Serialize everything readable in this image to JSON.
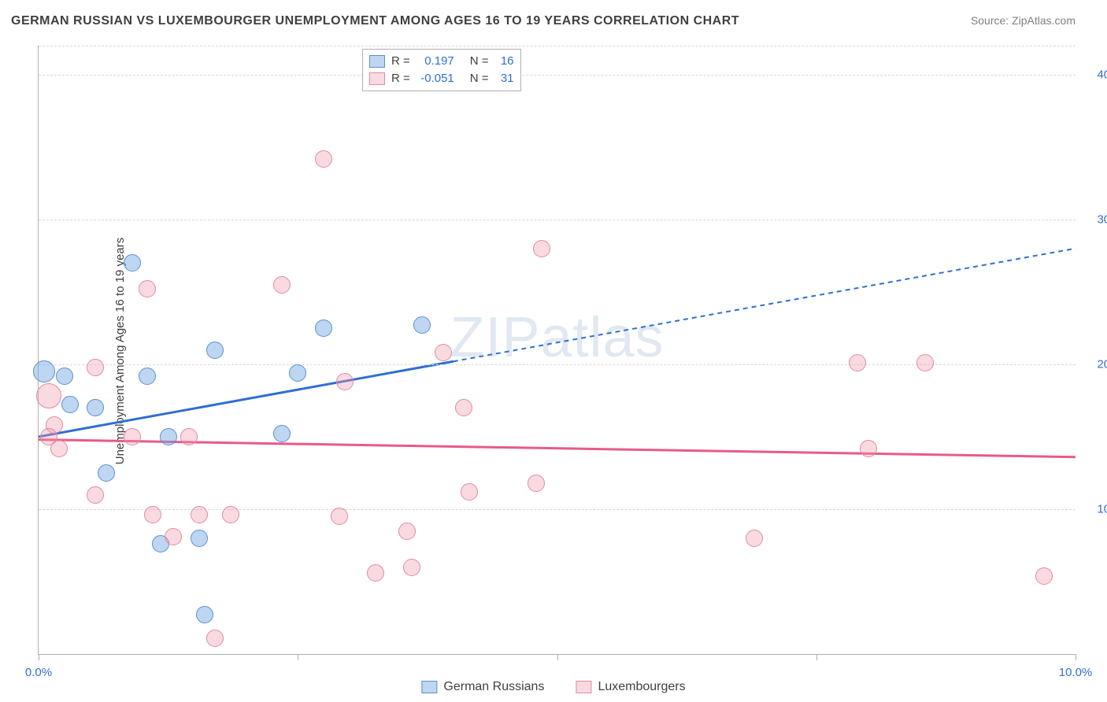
{
  "title": "GERMAN RUSSIAN VS LUXEMBOURGER UNEMPLOYMENT AMONG AGES 16 TO 19 YEARS CORRELATION CHART",
  "source": "Source: ZipAtlas.com",
  "ylabel": "Unemployment Among Ages 16 to 19 years",
  "watermark": "ZIPatlas",
  "chart": {
    "type": "scatter-with-regression",
    "xlim": [
      0,
      10
    ],
    "ylim": [
      0,
      42
    ],
    "x_ticks": [
      0,
      2.5,
      5,
      7.5,
      10
    ],
    "x_tick_labels": [
      "0.0%",
      "",
      "",
      "",
      "10.0%"
    ],
    "y_gridlines": [
      10,
      20,
      30,
      40,
      42
    ],
    "y_tick_labels": {
      "10": "10.0%",
      "20": "20.0%",
      "30": "30.0%",
      "40": "40.0%"
    },
    "background_color": "#ffffff",
    "grid_color": "#d8d8d8",
    "axis_color": "#b0b0b0",
    "tick_label_color": "#2f6fd0"
  },
  "series": [
    {
      "name": "German Russians",
      "label": "German Russians",
      "color_fill": "rgba(111,165,227,0.45)",
      "color_stroke": "#5a8fcf",
      "trend_color": "#2f6fd0",
      "r": 0.197,
      "n": 16,
      "trend": {
        "x1": 0,
        "y1": 15,
        "x2_solid": 4.0,
        "y2_solid": 20.2,
        "x2": 10,
        "y2": 28.0
      },
      "points": [
        {
          "x": 0.05,
          "y": 19.5,
          "r": 13
        },
        {
          "x": 0.25,
          "y": 19.2,
          "r": 10
        },
        {
          "x": 0.9,
          "y": 27.0,
          "r": 10
        },
        {
          "x": 0.55,
          "y": 17.0,
          "r": 10
        },
        {
          "x": 0.65,
          "y": 12.5,
          "r": 10
        },
        {
          "x": 0.3,
          "y": 17.2,
          "r": 10
        },
        {
          "x": 1.05,
          "y": 19.2,
          "r": 10
        },
        {
          "x": 1.18,
          "y": 7.6,
          "r": 10
        },
        {
          "x": 1.6,
          "y": 2.7,
          "r": 10
        },
        {
          "x": 1.7,
          "y": 21.0,
          "r": 10
        },
        {
          "x": 2.35,
          "y": 15.2,
          "r": 10
        },
        {
          "x": 2.5,
          "y": 19.4,
          "r": 10
        },
        {
          "x": 2.75,
          "y": 22.5,
          "r": 10
        },
        {
          "x": 1.25,
          "y": 15.0,
          "r": 10
        },
        {
          "x": 3.7,
          "y": 22.7,
          "r": 10
        },
        {
          "x": 1.55,
          "y": 8.0,
          "r": 10
        }
      ]
    },
    {
      "name": "Luxembourgers",
      "label": "Luxembourgers",
      "color_fill": "rgba(240,150,170,0.35)",
      "color_stroke": "#e08aa0",
      "trend_color": "#e85a8a",
      "r": -0.051,
      "n": 31,
      "trend": {
        "x1": 0,
        "y1": 14.8,
        "x2_solid": 10,
        "y2_solid": 13.6,
        "x2": 10,
        "y2": 13.6
      },
      "points": [
        {
          "x": 0.1,
          "y": 17.8,
          "r": 15
        },
        {
          "x": 0.15,
          "y": 15.8,
          "r": 10
        },
        {
          "x": 0.2,
          "y": 14.2,
          "r": 10
        },
        {
          "x": 0.55,
          "y": 19.8,
          "r": 10
        },
        {
          "x": 0.55,
          "y": 11.0,
          "r": 10
        },
        {
          "x": 0.9,
          "y": 15.0,
          "r": 10
        },
        {
          "x": 1.05,
          "y": 25.2,
          "r": 10
        },
        {
          "x": 1.1,
          "y": 9.6,
          "r": 10
        },
        {
          "x": 1.3,
          "y": 8.1,
          "r": 10
        },
        {
          "x": 1.45,
          "y": 15.0,
          "r": 10
        },
        {
          "x": 1.55,
          "y": 9.6,
          "r": 10
        },
        {
          "x": 1.7,
          "y": 1.1,
          "r": 10
        },
        {
          "x": 1.85,
          "y": 9.6,
          "r": 10
        },
        {
          "x": 2.35,
          "y": 25.5,
          "r": 10
        },
        {
          "x": 2.75,
          "y": 34.2,
          "r": 10
        },
        {
          "x": 2.9,
          "y": 9.5,
          "r": 10
        },
        {
          "x": 2.95,
          "y": 18.8,
          "r": 10
        },
        {
          "x": 3.25,
          "y": 5.6,
          "r": 10
        },
        {
          "x": 3.55,
          "y": 8.5,
          "r": 10
        },
        {
          "x": 3.6,
          "y": 6.0,
          "r": 10
        },
        {
          "x": 3.9,
          "y": 20.8,
          "r": 10
        },
        {
          "x": 4.1,
          "y": 17.0,
          "r": 10
        },
        {
          "x": 4.15,
          "y": 11.2,
          "r": 10
        },
        {
          "x": 4.8,
          "y": 11.8,
          "r": 10
        },
        {
          "x": 4.85,
          "y": 28.0,
          "r": 10
        },
        {
          "x": 6.9,
          "y": 8.0,
          "r": 10
        },
        {
          "x": 7.9,
          "y": 20.1,
          "r": 10
        },
        {
          "x": 8.0,
          "y": 14.2,
          "r": 10
        },
        {
          "x": 8.55,
          "y": 20.1,
          "r": 10
        },
        {
          "x": 9.7,
          "y": 5.4,
          "r": 10
        },
        {
          "x": 0.1,
          "y": 15.0,
          "r": 10
        }
      ]
    }
  ],
  "stats_box": {
    "rows": [
      {
        "swatch": "blue",
        "r_label": "R =",
        "r_val": "0.197",
        "n_label": "N =",
        "n_val": "16"
      },
      {
        "swatch": "pink",
        "r_label": "R =",
        "r_val": "-0.051",
        "n_label": "N =",
        "n_val": "31"
      }
    ]
  },
  "bottom_legend": [
    {
      "swatch": "blue",
      "label": "German Russians"
    },
    {
      "swatch": "pink",
      "label": "Luxembourgers"
    }
  ]
}
